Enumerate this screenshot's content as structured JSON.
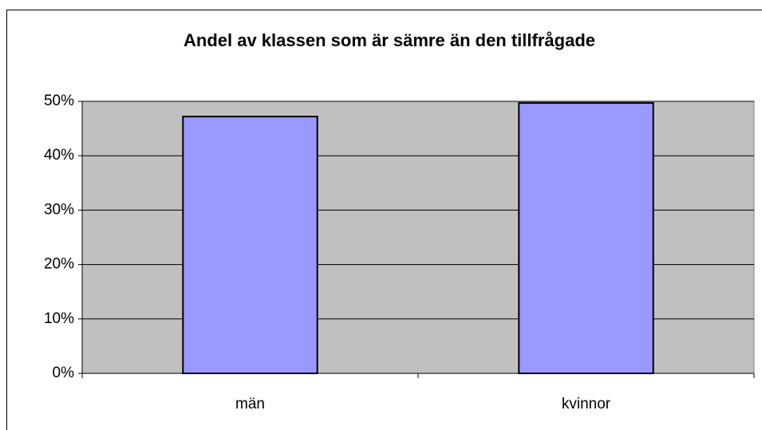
{
  "chart_data": {
    "type": "bar",
    "title": "Andel av klassen som är sämre än den tillfrågade",
    "categories": [
      "män",
      "kvinnor"
    ],
    "values": [
      47.2,
      49.7
    ],
    "color": "#9999ff",
    "ylim": [
      0,
      50
    ],
    "yticks": [
      {
        "value": 0,
        "label": "0%"
      },
      {
        "value": 10,
        "label": "10%"
      },
      {
        "value": 20,
        "label": "20%"
      },
      {
        "value": 30,
        "label": "30%"
      },
      {
        "value": 40,
        "label": "40%"
      },
      {
        "value": 50,
        "label": "50%"
      }
    ],
    "grid": true
  }
}
